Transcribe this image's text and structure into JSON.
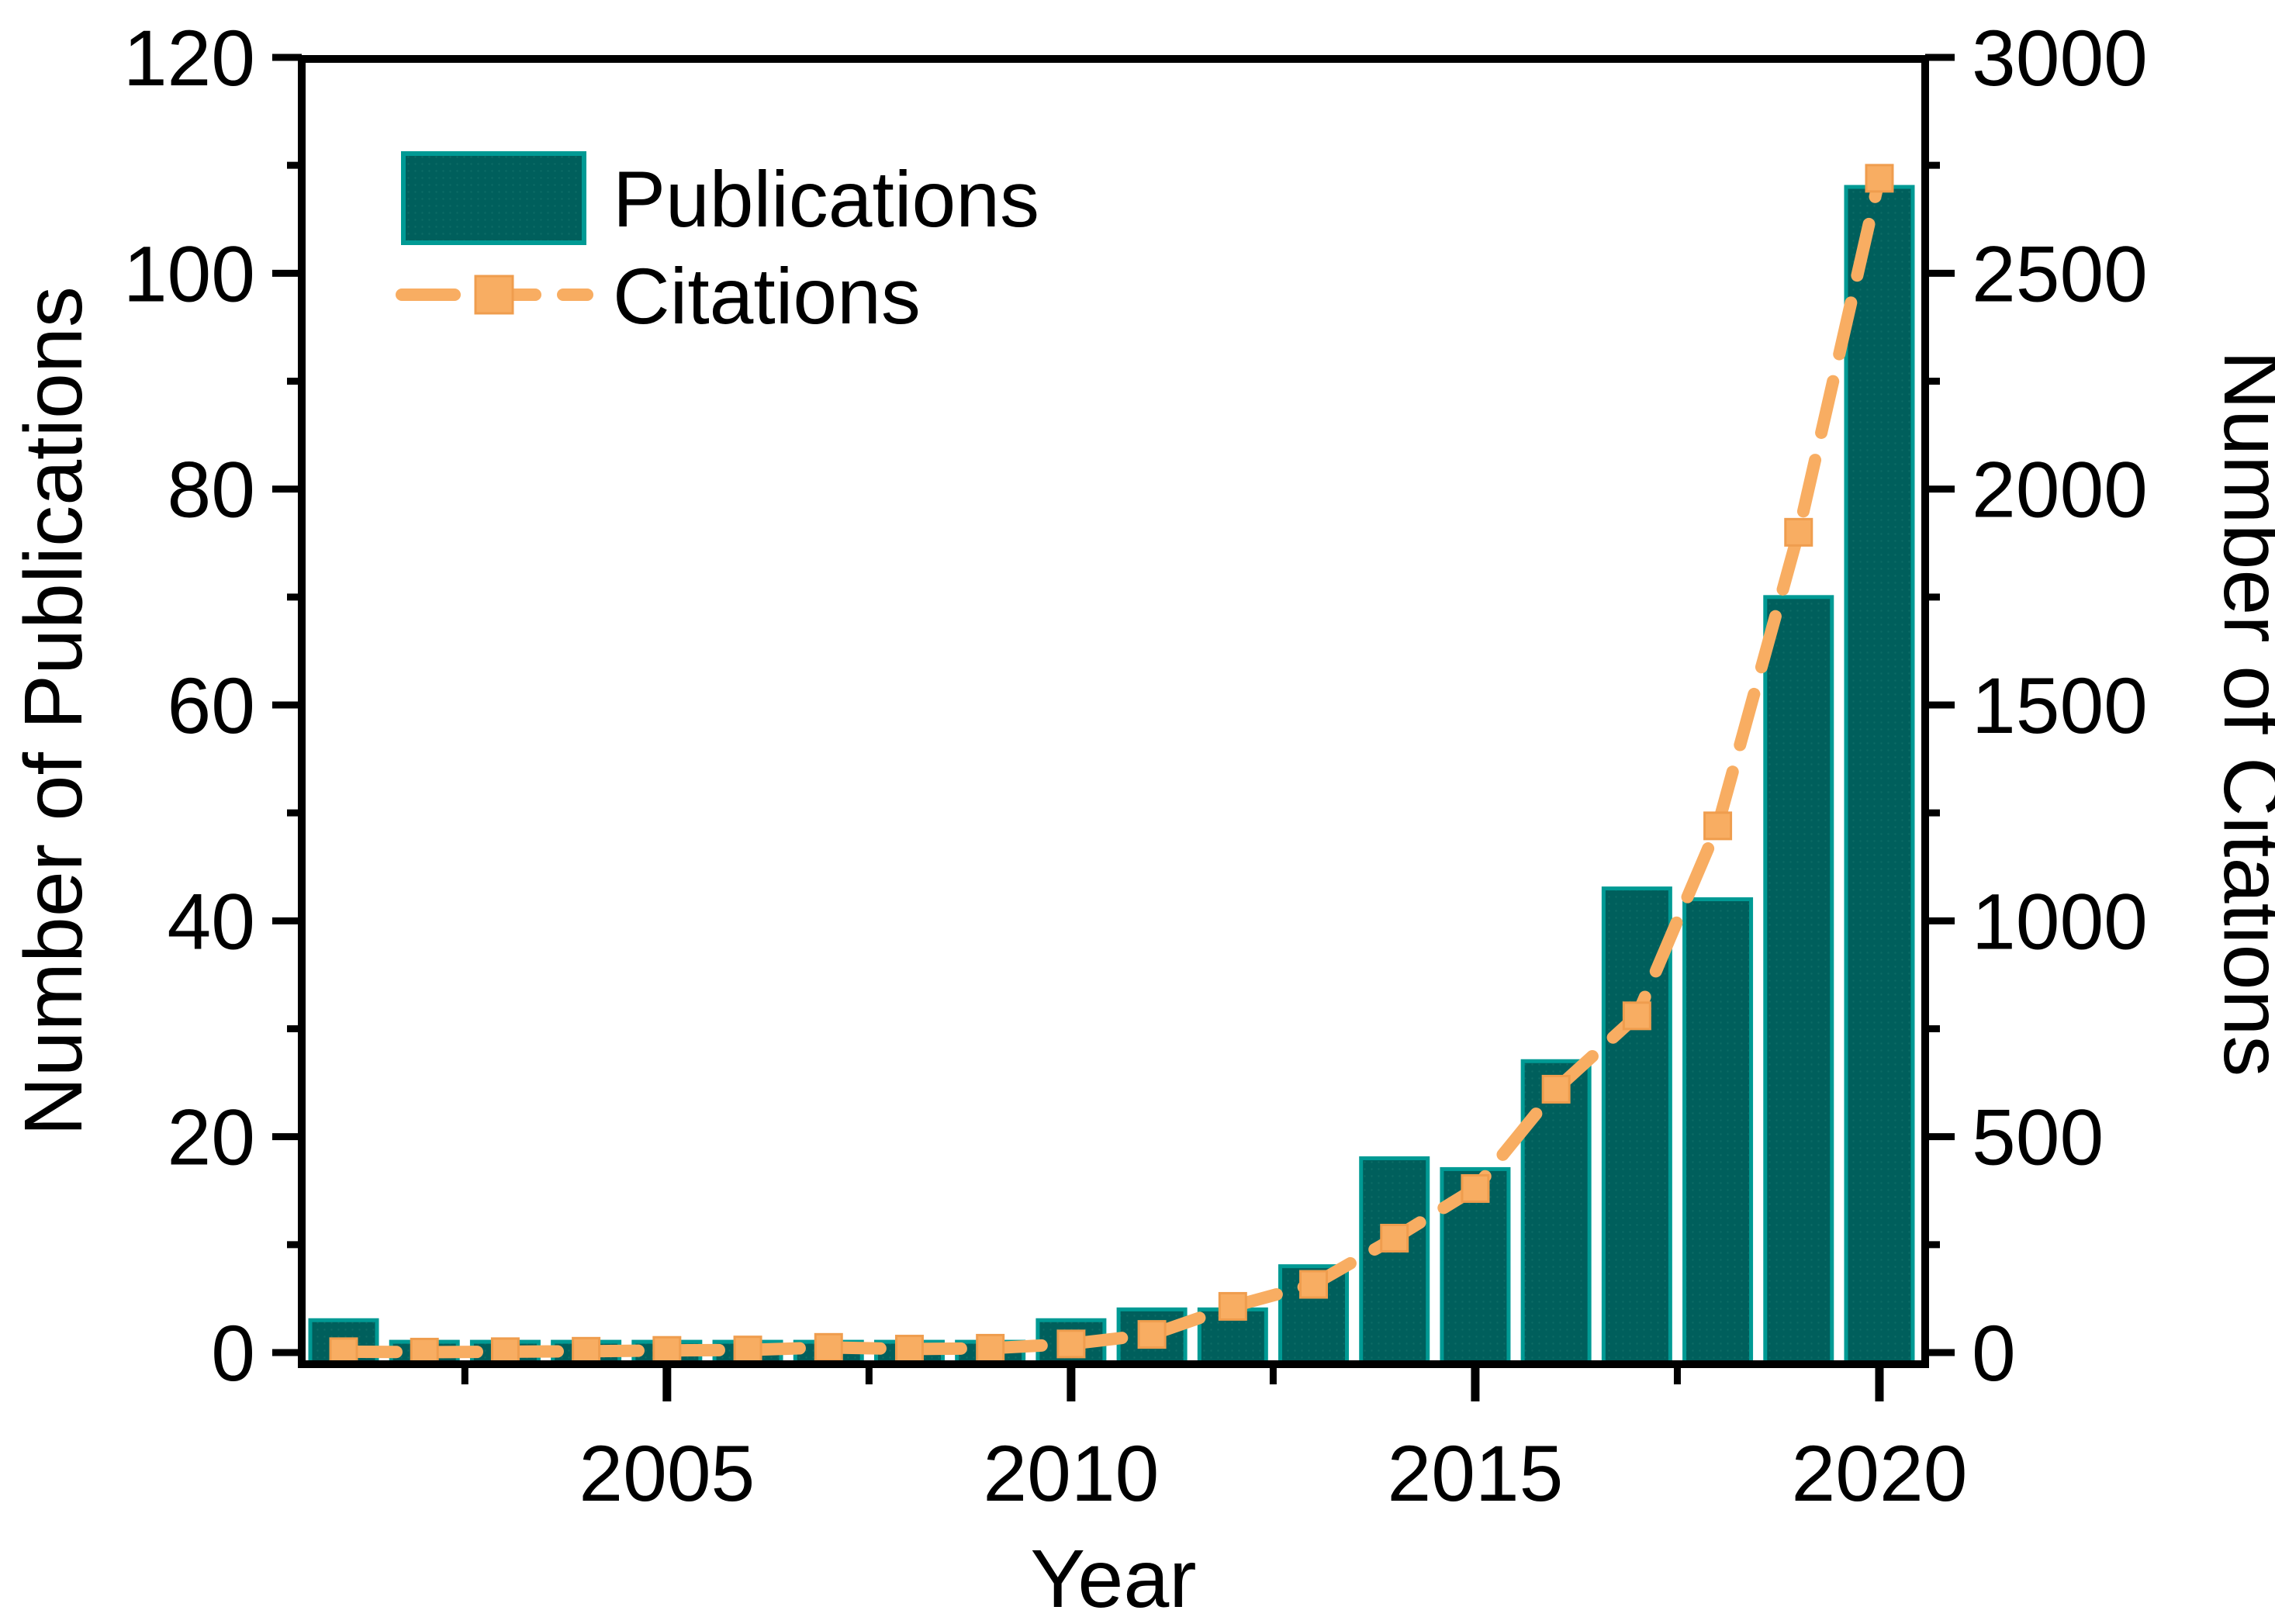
{
  "chart_data": {
    "type": "bar+line",
    "title": "",
    "categories": [
      "2001",
      "2002",
      "2003",
      "2004",
      "2005",
      "2006",
      "2007",
      "2008",
      "2009",
      "2010",
      "2011",
      "2012",
      "2013",
      "2014",
      "2015",
      "2016",
      "2017",
      "2018",
      "2019",
      "2020"
    ],
    "series": [
      {
        "name": "Publications",
        "type": "bar",
        "axis": "left",
        "color": "#005f5c",
        "edge_color": "#009a94",
        "values": [
          3,
          1,
          1,
          1,
          1,
          1,
          1,
          1,
          1,
          3,
          4,
          4,
          8,
          18,
          17,
          27,
          43,
          42,
          70,
          108
        ]
      },
      {
        "name": "Citations",
        "type": "line",
        "axis": "right",
        "color": "#F8AD62",
        "marker": "square",
        "marker_edge_color": "#ef9d4e",
        "line_style": "dashed",
        "values": [
          2,
          1,
          2,
          3,
          5,
          6,
          12,
          8,
          10,
          20,
          42,
          107,
          158,
          265,
          380,
          610,
          780,
          1220,
          1900,
          2720
        ]
      }
    ],
    "xlabel": "Year",
    "left_axis": {
      "label": "Number of Publications",
      "min": 0,
      "max": 120,
      "major_step": 20,
      "minor_step": 10
    },
    "right_axis": {
      "label": "Number of Citations",
      "min": 0,
      "max": 3000,
      "major_step": 500,
      "minor_step": 250
    },
    "x_axis": {
      "major_tick_years": [
        2005,
        2010,
        2015,
        2020
      ],
      "minor_tick_years": [
        2002.5,
        2007.5,
        2012.5,
        2017.5
      ]
    },
    "legend": {
      "position": "top-left-inside",
      "entries": [
        "Publications",
        "Citations"
      ]
    },
    "grid": false,
    "axis_color": "#000000",
    "background": "#ffffff"
  }
}
